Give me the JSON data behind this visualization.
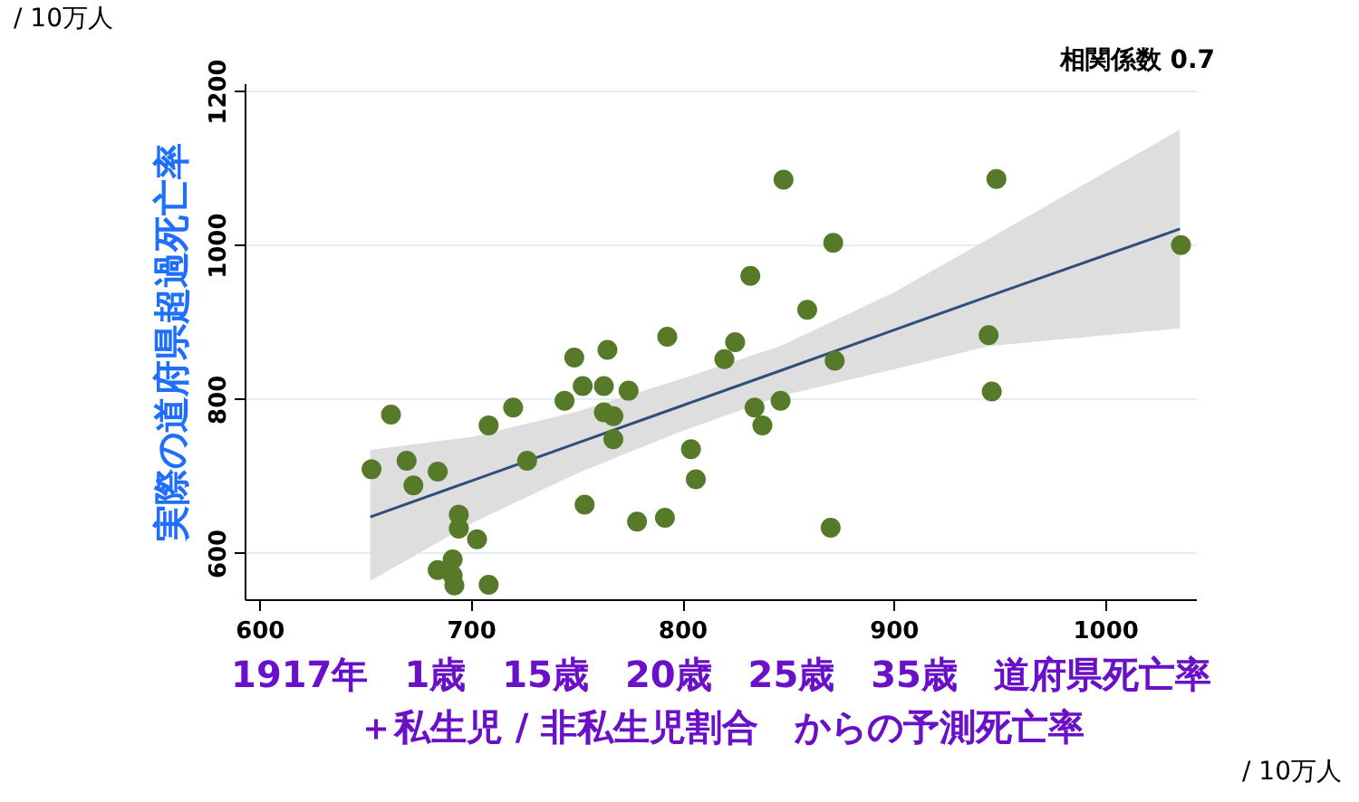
{
  "chart_data": {
    "type": "scatter",
    "xlabel": "1917年　1歳　15歳　20歳　25歳　35歳　道府県死亡率＋私生児 / 非私生児割合　からの予測死亡率",
    "ylabel": "実際の道府県超過死亡率",
    "annotations": [
      "相関係数 0.7",
      "/ 10万人",
      "/ 10万人"
    ],
    "xlim": [
      593,
      1043
    ],
    "ylim": [
      540,
      1210
    ],
    "xticks": [
      600,
      700,
      800,
      900,
      1000
    ],
    "yticks": [
      600,
      800,
      1000,
      1200
    ],
    "grid": "y",
    "marker": "circle",
    "series": [
      {
        "type": "scatter",
        "color": "#567a2a",
        "x": [
          652.6,
          661.8,
          669.2,
          672.4,
          683.9,
          693.9,
          693.9,
          702.5,
          683.9,
          691,
          691,
          691.8,
          708,
          708,
          719.6,
          726.2,
          743.9,
          748.5,
          752.5,
          753.4,
          762.5,
          764.2,
          762.5,
          767,
          767,
          774.2,
          778.2,
          791.4,
          792.5,
          803.7,
          806,
          819.5,
          824.6,
          831.8,
          833.8,
          837.5,
          846.1,
          847.5,
          858.7,
          871,
          871.7,
          869.8,
          948.2,
          944.5,
          946,
          1035.5
        ],
        "values": [
          710,
          781,
          721,
          689,
          707,
          651,
          633,
          619,
          579,
          593,
          572,
          559,
          560,
          767,
          790,
          721,
          799,
          855,
          818,
          664,
          818,
          865,
          784,
          779,
          749,
          812,
          642,
          647,
          882,
          736,
          697,
          853,
          875,
          961,
          790,
          767,
          799,
          1086,
          917,
          1004,
          851,
          634,
          1087,
          884,
          811,
          1001
        ]
      },
      {
        "type": "line",
        "color": "#2e4f7a",
        "line_style": "solid",
        "marker": "none",
        "x": [
          652,
          700,
          750,
          800,
          846,
          900,
          945,
          1035
        ],
        "values": [
          648,
          695,
          744,
          793,
          838,
          891,
          935,
          1022
        ],
        "lower": [
          565,
          640,
          705,
          760,
          805,
          840,
          870,
          893
        ],
        "upper": [
          735,
          752,
          785,
          828,
          870,
          940,
          1010,
          1151
        ]
      }
    ]
  }
}
